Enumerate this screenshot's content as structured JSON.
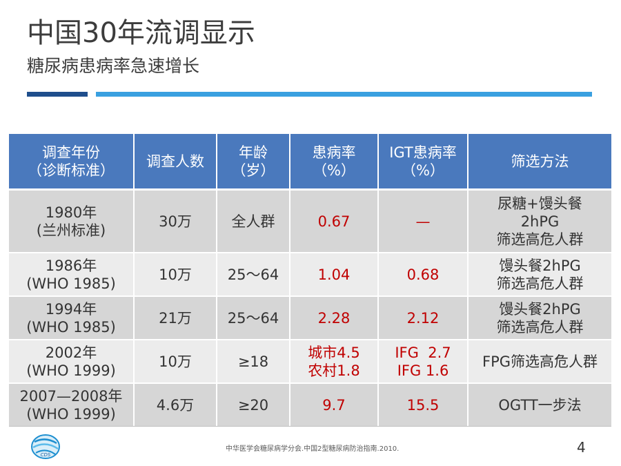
{
  "slide": {
    "title": "中国30年流调显示",
    "subtitle": "糖尿病患病率急速增长",
    "page_number": "4",
    "citation": "中华医学会糖尿病学分会.中国2型糖尿病防治指南.2010.",
    "logo_text": "CDS"
  },
  "colors": {
    "header_bg": "#4a79bd",
    "row_dark": "#d6d6d6",
    "row_light": "#ececec",
    "highlight_red": "#c00000",
    "rule_dark": "#1f4e8c",
    "rule_light": "#3aa0e0"
  },
  "table": {
    "headers": [
      {
        "l1": "调查年份",
        "l2": "（诊断标准）"
      },
      {
        "l1": "调查人数",
        "l2": ""
      },
      {
        "l1": "年龄",
        "l2": "（岁）"
      },
      {
        "l1": "患病率",
        "l2": "（%）"
      },
      {
        "l1": "IGT患病率",
        "l2": "（%）"
      },
      {
        "l1": "筛选方法",
        "l2": ""
      }
    ],
    "rows": [
      {
        "year": {
          "l1": "1980年",
          "l2": "(兰州标准)"
        },
        "count": "30万",
        "age": "全人群",
        "prevalence": {
          "l1": "0.67",
          "l2": ""
        },
        "igt": {
          "l1": "—",
          "l2": ""
        },
        "method": {
          "l1": "尿糖+馒头餐",
          "l2": "2hPG",
          "l3": "筛选高危人群"
        }
      },
      {
        "year": {
          "l1": "1986年",
          "l2": "(WHO 1985)"
        },
        "count": "10万",
        "age": "25～64",
        "prevalence": {
          "l1": "1.04",
          "l2": ""
        },
        "igt": {
          "l1": "0.68",
          "l2": ""
        },
        "method": {
          "l1": "馒头餐2hPG",
          "l2": "筛选高危人群",
          "l3": ""
        }
      },
      {
        "year": {
          "l1": "1994年",
          "l2": "(WHO 1985)"
        },
        "count": "21万",
        "age": "25～64",
        "prevalence": {
          "l1": "2.28",
          "l2": ""
        },
        "igt": {
          "l1": "2.12",
          "l2": ""
        },
        "method": {
          "l1": "馒头餐2hPG",
          "l2": "筛选高危人群",
          "l3": ""
        }
      },
      {
        "year": {
          "l1": "2002年",
          "l2": "(WHO 1999)"
        },
        "count": "10万",
        "age": "≥18",
        "prevalence": {
          "l1": "城市4.5",
          "l2": "农村1.8"
        },
        "igt": {
          "l1": "IFG  2.7",
          "l2": "IFG 1.6"
        },
        "method": {
          "l1": "FPG筛选高危人群",
          "l2": "",
          "l3": ""
        }
      },
      {
        "year": {
          "l1": "2007—2008年",
          "l2": "(WHO 1999)"
        },
        "count": "4.6万",
        "age": "≥20",
        "prevalence": {
          "l1": "9.7",
          "l2": ""
        },
        "igt": {
          "l1": "15.5",
          "l2": ""
        },
        "method": {
          "l1": "OGTT一步法",
          "l2": "",
          "l3": ""
        }
      }
    ]
  }
}
